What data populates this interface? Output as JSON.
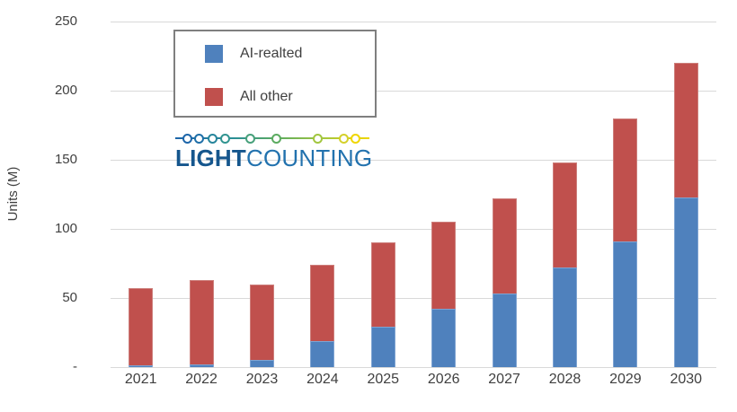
{
  "chart_data": {
    "type": "bar",
    "stacked": true,
    "categories": [
      "2021",
      "2022",
      "2023",
      "2024",
      "2025",
      "2026",
      "2027",
      "2028",
      "2029",
      "2030"
    ],
    "series": [
      {
        "name": "AI-realted",
        "color": "#4f81bd",
        "values": [
          1,
          2,
          5,
          19,
          29,
          42,
          53,
          72,
          91,
          123
        ]
      },
      {
        "name": "All other",
        "color": "#c0504d",
        "values": [
          56,
          61,
          55,
          55,
          61,
          63,
          69,
          76,
          89,
          97
        ]
      }
    ],
    "title": "",
    "xlabel": "",
    "ylabel": "Units (M)",
    "ylim": [
      0,
      250
    ],
    "ytick_interval": 50,
    "ytick_labels": [
      "-",
      "50",
      "100",
      "150",
      "200",
      "250"
    ],
    "grid": true,
    "gridline_color": "#d9d9d9",
    "axis_text_color": "#404040",
    "legend_position": "top-left-box"
  },
  "legend": {
    "border_color": "#7f7f7f",
    "items": [
      {
        "label": "AI-realted",
        "color": "#4f81bd"
      },
      {
        "label": "All other",
        "color": "#c0504d"
      }
    ]
  },
  "logo": {
    "text_bold": "LIGHT",
    "text_regular": "COUNTING",
    "text_bold_color": "#15568d",
    "text_regular_color": "#2272ae",
    "dot_offsets": [
      13,
      26,
      41,
      55,
      83,
      112,
      158,
      187,
      200
    ],
    "dot_colors": [
      "#1d65a9",
      "#1f6fa8",
      "#27859c",
      "#319490",
      "#47a07b",
      "#5bab60",
      "#a2c63f",
      "#d4d02a",
      "#f0d600"
    ]
  }
}
